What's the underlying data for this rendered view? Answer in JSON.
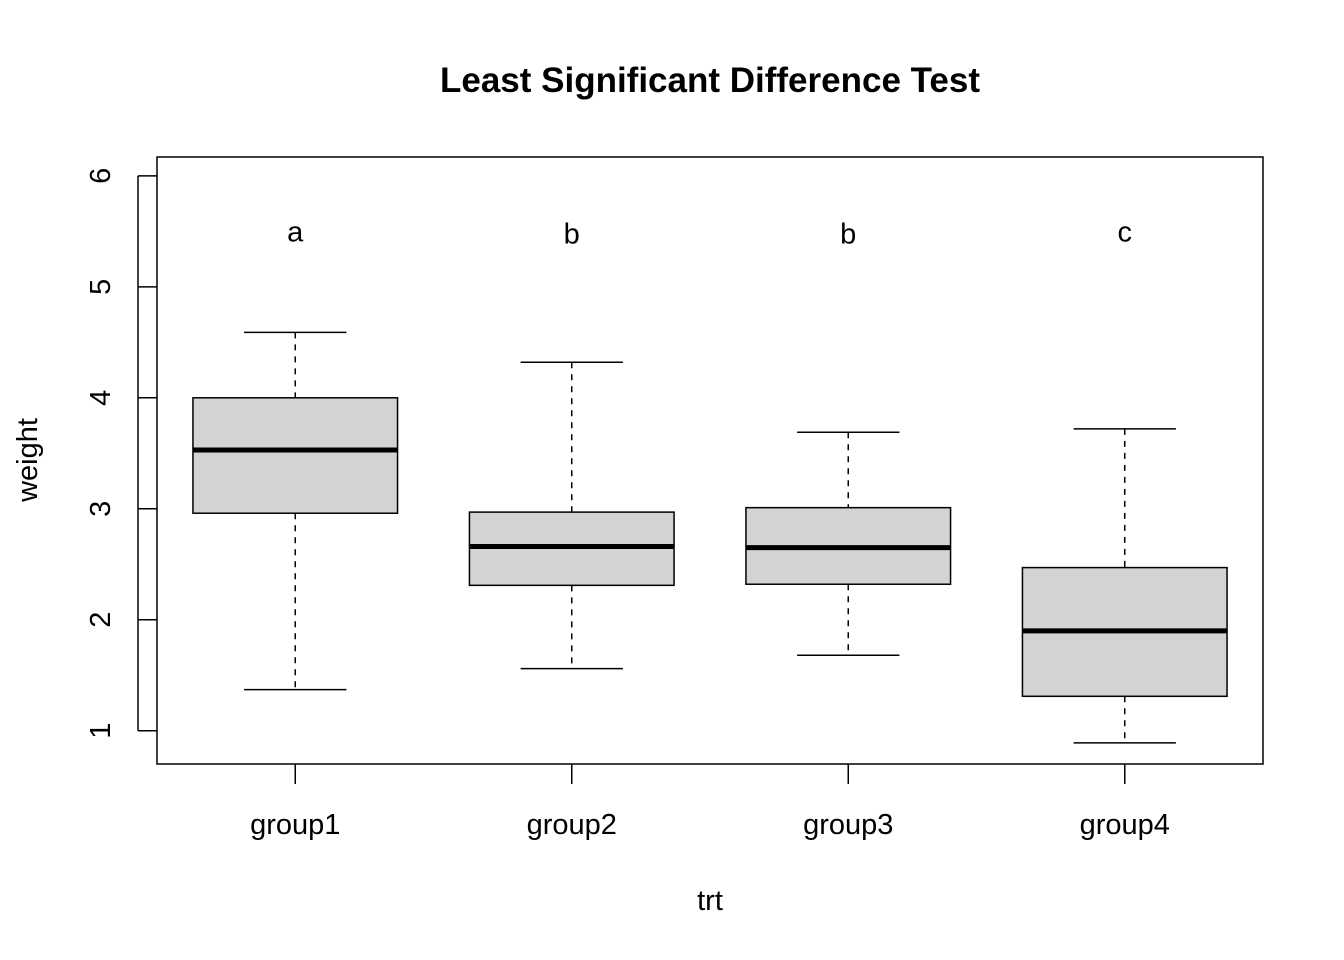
{
  "chart_data": {
    "type": "boxplot",
    "title": "Least Significant Difference Test",
    "xlabel": "trt",
    "ylabel": "weight",
    "ylim": [
      0.7,
      6.17
    ],
    "yticks": [
      1,
      2,
      3,
      4,
      5,
      6
    ],
    "grid": false,
    "box_fill": "#d3d3d3",
    "categories": [
      "group1",
      "group2",
      "group3",
      "group4"
    ],
    "boxes": [
      {
        "category": "group1",
        "min": 1.37,
        "q1": 2.96,
        "median": 3.53,
        "q3": 4.0,
        "max": 4.59,
        "letter": "a",
        "letter_y": 5.5
      },
      {
        "category": "group2",
        "min": 1.56,
        "q1": 2.31,
        "median": 2.66,
        "q3": 2.97,
        "max": 4.32,
        "letter": "b",
        "letter_y": 5.48
      },
      {
        "category": "group3",
        "min": 1.68,
        "q1": 2.32,
        "median": 2.65,
        "q3": 3.01,
        "max": 3.69,
        "letter": "b",
        "letter_y": 5.48
      },
      {
        "category": "group4",
        "min": 0.89,
        "q1": 1.31,
        "median": 1.9,
        "q3": 2.47,
        "max": 3.72,
        "letter": "c",
        "letter_y": 5.5
      }
    ]
  }
}
